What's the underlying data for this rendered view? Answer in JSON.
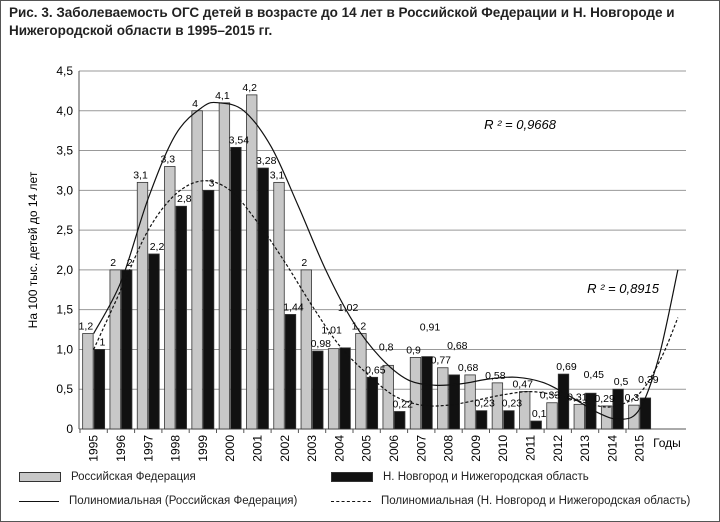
{
  "chart_data": {
    "type": "bar",
    "title": "Рис. 3. Заболеваемость ОГС детей в возрасте до 14 лет в Российской Федерации и Н. Новгороде и Нижегородской области в 1995–2015 гг.",
    "xlabel": "Годы",
    "ylabel": "На 100 тыс. детей до 14 лет",
    "ylim": [
      0,
      4.5
    ],
    "yticks": [
      "0",
      "0,5",
      "1,0",
      "1,5",
      "2,0",
      "2,5",
      "3,0",
      "3,5",
      "4,0",
      "4,5"
    ],
    "categories": [
      "1995",
      "1996",
      "1997",
      "1998",
      "1999",
      "2000",
      "2001",
      "2002",
      "2003",
      "2004",
      "2005",
      "2006",
      "2007",
      "2008",
      "2009",
      "2010",
      "2011",
      "2012",
      "2013",
      "2014",
      "2015"
    ],
    "series": [
      {
        "name": "Российская Федерация",
        "color": "#c8c8c8",
        "values": [
          1.2,
          2,
          3.1,
          3.3,
          4,
          4.1,
          4.2,
          3.1,
          2,
          1.01,
          1.2,
          0.8,
          0.9,
          0.77,
          0.68,
          0.58,
          0.47,
          0.33,
          0.31,
          0.29,
          0.3
        ],
        "labels": [
          "1,2",
          "2",
          "3,1",
          "3,3",
          "4",
          "4,1",
          "4,2",
          "3,1",
          "2",
          "1,01",
          "1,2",
          "0,8",
          "0,9",
          "0,77",
          "0,68",
          "0,58",
          "0,47",
          "0,33",
          "0,31",
          "0,29",
          "0,3"
        ]
      },
      {
        "name": "Н. Новгород и Нижегородская область",
        "color": "#111111",
        "values": [
          1,
          2,
          2.2,
          2.8,
          3,
          3.54,
          3.28,
          1.44,
          0.98,
          1.02,
          0.65,
          0.22,
          0.91,
          0.68,
          0.23,
          0.23,
          0.1,
          0.69,
          0.45,
          0.5,
          0.39
        ],
        "labels": [
          "1",
          "2",
          "2,2",
          "2,8",
          "3",
          "3,54",
          "3,28",
          "1,44",
          "0,98",
          "1,02",
          "0,65",
          "0,22",
          "0,91",
          "0,68",
          "0,23",
          "0,23",
          "0,1",
          "0,69",
          "0,45",
          "0,5",
          "0,39"
        ]
      }
    ],
    "trendlines": [
      {
        "name": "Полиномиальная (Российская Федерация)",
        "style": "solid",
        "r2": "R ² = 0,9668",
        "approx_points": [
          [
            1995,
            1.2
          ],
          [
            1996,
            1.85
          ],
          [
            1997,
            2.9
          ],
          [
            1998,
            3.7
          ],
          [
            1999,
            4.05
          ],
          [
            1999.6,
            4.1
          ],
          [
            2000.5,
            4.0
          ],
          [
            2001.5,
            3.55
          ],
          [
            2002.5,
            2.8
          ],
          [
            2003.5,
            2.0
          ],
          [
            2004.5,
            1.35
          ],
          [
            2005.5,
            0.9
          ],
          [
            2006.5,
            0.62
          ],
          [
            2007.5,
            0.55
          ],
          [
            2008.5,
            0.57
          ],
          [
            2009.5,
            0.63
          ],
          [
            2010.5,
            0.65
          ],
          [
            2011.5,
            0.58
          ],
          [
            2012.5,
            0.4
          ],
          [
            2013.5,
            0.2
          ],
          [
            2014.3,
            0.12
          ],
          [
            2015,
            0.25
          ],
          [
            2015.7,
            0.9
          ],
          [
            2016.4,
            2.0
          ]
        ]
      },
      {
        "name": "Полиномиальная  (Н. Новгород и Нижегородская область)",
        "style": "dashed",
        "r2": "R ² = 0,8915",
        "approx_points": [
          [
            1995,
            1.0
          ],
          [
            1996,
            1.75
          ],
          [
            1997,
            2.5
          ],
          [
            1998,
            2.95
          ],
          [
            1999,
            3.12
          ],
          [
            2000,
            3.0
          ],
          [
            2001,
            2.6
          ],
          [
            2002,
            2.1
          ],
          [
            2003,
            1.55
          ],
          [
            2004,
            1.05
          ],
          [
            2005,
            0.7
          ],
          [
            2006,
            0.42
          ],
          [
            2007,
            0.3
          ],
          [
            2008,
            0.3
          ],
          [
            2009,
            0.36
          ],
          [
            2010,
            0.43
          ],
          [
            2011,
            0.47
          ],
          [
            2012,
            0.42
          ],
          [
            2013,
            0.33
          ],
          [
            2014,
            0.28
          ],
          [
            2015,
            0.45
          ],
          [
            2015.8,
            0.9
          ],
          [
            2016.4,
            1.4
          ]
        ]
      }
    ],
    "legend_position": "bottom"
  }
}
